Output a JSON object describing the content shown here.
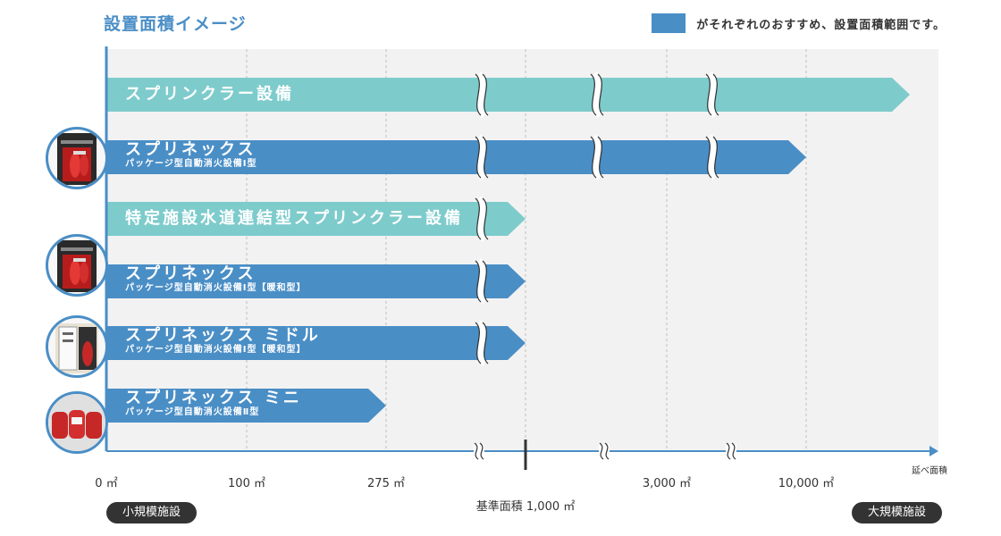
{
  "title": "設置面積イメージ",
  "legend": {
    "text": "がそれぞれのおすすめ、設置面積範囲です。",
    "color": "#4a8ec6"
  },
  "colors": {
    "teal": "#7ecbcc",
    "blue": "#4a8ec6",
    "axis": "#4a8ec6"
  },
  "chart_data": {
    "type": "bar",
    "orientation": "horizontal",
    "x_scale": "segmented (broken axis)",
    "xlabel": "延べ面積",
    "ticks": [
      "0 ㎡",
      "100 ㎡",
      "275 ㎡",
      "3,000 ㎡",
      "10,000 ㎡"
    ],
    "tick_values": [
      0,
      100,
      275,
      3000,
      10000
    ],
    "reference": {
      "label": "基準面積 1,000 ㎡",
      "value": 1000
    },
    "bars": [
      {
        "name": "スプリンクラー設備",
        "sub": "",
        "start": 0,
        "end": "10,000+",
        "color": "teal",
        "breaks": 3
      },
      {
        "name": "スプリネックス",
        "sub": "パッケージ型自動消火設備Ⅰ型",
        "start": 0,
        "end": 10000,
        "color": "blue",
        "breaks": 3
      },
      {
        "name": "特定施設水道連結型スプリンクラー設備",
        "sub": "",
        "start": 0,
        "end": 1000,
        "color": "teal",
        "breaks": 1
      },
      {
        "name": "スプリネックス",
        "sub": "パッケージ型自動消火設備Ⅰ型【暖和型】",
        "start": 0,
        "end": 1000,
        "color": "blue",
        "breaks": 1
      },
      {
        "name": "スプリネックス ミドル",
        "sub": "パッケージ型自動消火設備Ⅰ型【暖和型】",
        "start": 0,
        "end": 1000,
        "color": "blue",
        "breaks": 1
      },
      {
        "name": "スプリネックス ミニ",
        "sub": "パッケージ型自動消火設備Ⅱ型",
        "start": 0,
        "end": 275,
        "color": "blue",
        "breaks": 0
      }
    ]
  },
  "scale_labels": {
    "small": "小規模施設",
    "large": "大規模施設"
  }
}
